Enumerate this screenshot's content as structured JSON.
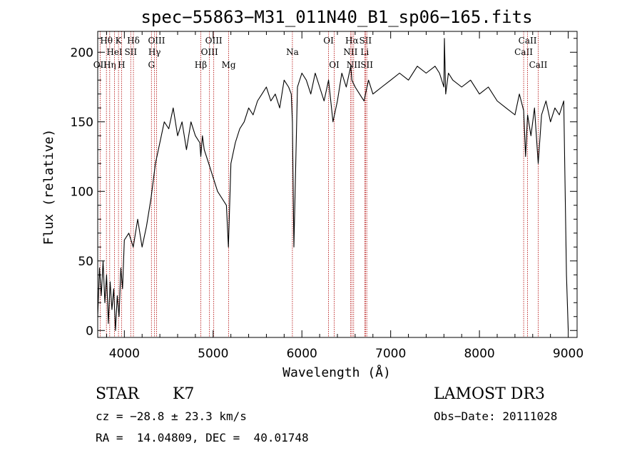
{
  "chart_data": {
    "type": "line",
    "title": "spec−55863−M31_011N40_B1_sp06−165.fits",
    "xlabel": "Wavelength (Å)",
    "ylabel": "Flux (relative)",
    "xlim": [
      3700,
      9100
    ],
    "ylim": [
      -5,
      215
    ],
    "x_ticks": [
      4000,
      5000,
      6000,
      7000,
      8000,
      9000
    ],
    "y_ticks": [
      0,
      50,
      100,
      150,
      200
    ],
    "grid": false,
    "series": [
      {
        "name": "spectrum",
        "x": [
          3700,
          3720,
          3740,
          3760,
          3780,
          3800,
          3820,
          3840,
          3860,
          3880,
          3900,
          3920,
          3940,
          3960,
          3980,
          4000,
          4050,
          4100,
          4150,
          4200,
          4250,
          4300,
          4350,
          4400,
          4450,
          4500,
          4550,
          4600,
          4650,
          4700,
          4750,
          4800,
          4850,
          4861,
          4880,
          4900,
          4950,
          5000,
          5050,
          5100,
          5150,
          5172,
          5200,
          5250,
          5300,
          5350,
          5400,
          5450,
          5500,
          5550,
          5600,
          5650,
          5700,
          5750,
          5800,
          5850,
          5880,
          5893,
          5910,
          5950,
          6000,
          6050,
          6100,
          6150,
          6200,
          6250,
          6300,
          6350,
          6400,
          6450,
          6500,
          6550,
          6563,
          6600,
          6650,
          6700,
          6750,
          6800,
          6900,
          7000,
          7100,
          7200,
          7300,
          7400,
          7500,
          7550,
          7600,
          7605,
          7620,
          7650,
          7700,
          7800,
          7900,
          8000,
          8100,
          8200,
          8300,
          8400,
          8450,
          8498,
          8520,
          8542,
          8580,
          8620,
          8662,
          8700,
          8750,
          8800,
          8850,
          8900,
          8950,
          8980,
          9000
        ],
        "values": [
          10,
          45,
          25,
          50,
          20,
          40,
          5,
          35,
          15,
          30,
          0,
          25,
          10,
          45,
          30,
          65,
          70,
          60,
          80,
          60,
          75,
          95,
          120,
          135,
          150,
          145,
          160,
          140,
          150,
          130,
          150,
          140,
          135,
          125,
          140,
          130,
          120,
          110,
          100,
          95,
          90,
          60,
          120,
          135,
          145,
          150,
          160,
          155,
          165,
          170,
          175,
          165,
          170,
          160,
          180,
          175,
          170,
          150,
          60,
          175,
          185,
          180,
          170,
          185,
          175,
          165,
          180,
          150,
          165,
          185,
          175,
          190,
          180,
          175,
          170,
          165,
          180,
          170,
          175,
          180,
          185,
          180,
          190,
          185,
          190,
          185,
          175,
          210,
          170,
          185,
          180,
          175,
          180,
          170,
          175,
          165,
          160,
          155,
          170,
          158,
          125,
          155,
          140,
          160,
          120,
          155,
          165,
          150,
          160,
          155,
          165,
          40,
          0
        ]
      }
    ],
    "lines": [
      {
        "name": "Hθ",
        "wl": 3798,
        "row": 1
      },
      {
        "name": "OII",
        "wl": 3727,
        "row": 3
      },
      {
        "name": "Hη",
        "wl": 3835,
        "row": 3
      },
      {
        "name": "HeI",
        "wl": 3889,
        "row": 2
      },
      {
        "name": "K",
        "wl": 3934,
        "row": 1
      },
      {
        "name": "H",
        "wl": 3968,
        "row": 3
      },
      {
        "name": "SII",
        "wl": 4072,
        "row": 2
      },
      {
        "name": "Hδ",
        "wl": 4102,
        "row": 1
      },
      {
        "name": "G",
        "wl": 4305,
        "row": 3
      },
      {
        "name": "Hγ",
        "wl": 4340,
        "row": 2
      },
      {
        "name": "OIII",
        "wl": 4363,
        "row": 1
      },
      {
        "name": "Hβ",
        "wl": 4861,
        "row": 3
      },
      {
        "name": "OIII",
        "wl": 4959,
        "row": 2
      },
      {
        "name": "OIII",
        "wl": 5007,
        "row": 1
      },
      {
        "name": "Mg",
        "wl": 5175,
        "row": 3
      },
      {
        "name": "Na",
        "wl": 5893,
        "row": 2
      },
      {
        "name": "OI",
        "wl": 6300,
        "row": 1
      },
      {
        "name": "OI",
        "wl": 6364,
        "row": 3
      },
      {
        "name": "NII",
        "wl": 6548,
        "row": 2
      },
      {
        "name": "Hα",
        "wl": 6563,
        "row": 1
      },
      {
        "name": "NII",
        "wl": 6583,
        "row": 3
      },
      {
        "name": "Li",
        "wl": 6708,
        "row": 2
      },
      {
        "name": "SII",
        "wl": 6716,
        "row": 1
      },
      {
        "name": "SII",
        "wl": 6731,
        "row": 3
      },
      {
        "name": "CaII",
        "wl": 8498,
        "row": 2
      },
      {
        "name": "CaII",
        "wl": 8542,
        "row": 1
      },
      {
        "name": "CaII",
        "wl": 8662,
        "row": 3
      }
    ]
  },
  "info": {
    "class": "STAR",
    "subclass": "K7",
    "survey": "LAMOST DR3",
    "cz": "cz = −28.8 ± 23.3 km/s",
    "obs_date": "Obs−Date: 20111028",
    "radec": "RA =  14.04809, DEC =  40.01748"
  },
  "colors": {
    "line_marker": "#b00000",
    "spectrum": "#000000"
  }
}
